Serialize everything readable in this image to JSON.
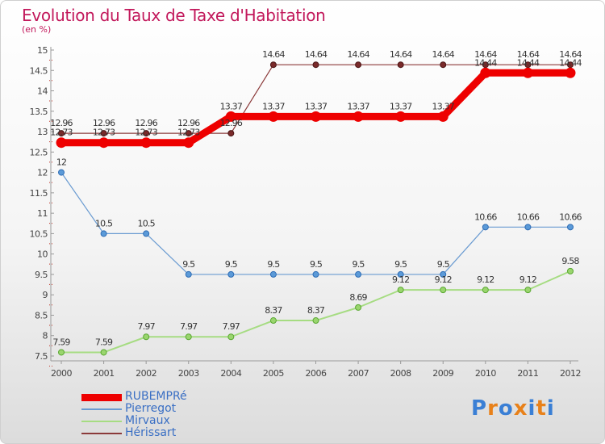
{
  "title": "Evolution du Taux de Taxe d'Habitation",
  "subtitle": "(en %)",
  "logo": {
    "text": "Proxiti",
    "colors": [
      "#3a7fd5",
      "#e8811a",
      "#3a7fd5",
      "#e8811a",
      "#3a7fd5",
      "#e8811a",
      "#3a7fd5"
    ]
  },
  "chart_data": {
    "type": "line",
    "x": [
      "2000",
      "2001",
      "2002",
      "2003",
      "2004",
      "2005",
      "2006",
      "2007",
      "2008",
      "2009",
      "2010",
      "2011",
      "2012"
    ],
    "ylim": [
      7.5,
      15
    ],
    "yticks": [
      "7.5",
      "8",
      "8.5",
      "9",
      "9.5",
      "10",
      "10.5",
      "11",
      "11.5",
      "12",
      "12.5",
      "13",
      "13.5",
      "14",
      "14.5",
      "15"
    ],
    "grid": false,
    "legend_position": "bottom-left",
    "series": [
      {
        "name": "RUBEMPRé",
        "color": "#ee0000",
        "values": [
          12.73,
          12.73,
          12.73,
          12.73,
          13.37,
          13.37,
          13.37,
          13.37,
          13.37,
          13.37,
          14.44,
          14.44,
          14.44
        ],
        "labels": [
          "12.73",
          "12.73",
          "12.73",
          "12.73",
          "13.37",
          "13.37",
          "13.37",
          "13.37",
          "13.37",
          "13.37",
          "14.44",
          "14.44",
          "14.44"
        ]
      },
      {
        "name": "Pierregot",
        "color": "#6a9bd1",
        "values": [
          12,
          10.5,
          10.5,
          9.5,
          9.5,
          9.5,
          9.5,
          9.5,
          9.5,
          9.5,
          10.66,
          10.66,
          10.66
        ],
        "labels": [
          "12",
          "10.5",
          "10.5",
          "9.5",
          "9.5",
          "9.5",
          "9.5",
          "9.5",
          "9.5",
          "9.5",
          "10.66",
          "10.66",
          "10.66"
        ]
      },
      {
        "name": "Mirvaux",
        "color": "#a6dc82",
        "values": [
          7.59,
          7.59,
          7.97,
          7.97,
          7.97,
          8.37,
          8.37,
          8.69,
          9.12,
          9.12,
          9.12,
          9.12,
          9.58
        ],
        "labels": [
          "7.59",
          "7.59",
          "7.97",
          "7.97",
          "7.97",
          "8.37",
          "8.37",
          "8.69",
          "9.12",
          "9.12",
          "9.12",
          "9.12",
          "9.58"
        ]
      },
      {
        "name": "Hérissart",
        "color": "#8b3a3a",
        "values": [
          12.96,
          12.96,
          12.96,
          12.96,
          12.96,
          14.64,
          14.64,
          14.64,
          14.64,
          14.64,
          14.64,
          14.64,
          14.64
        ],
        "labels": [
          "12.96",
          "12.96",
          "12.96",
          "12.96",
          "12.96",
          "14.64",
          "14.64",
          "14.64",
          "14.64",
          "14.64",
          "14.64",
          "14.64",
          "14.64"
        ]
      }
    ]
  }
}
